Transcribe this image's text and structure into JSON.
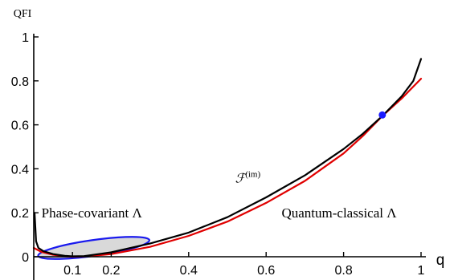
{
  "chart_data": {
    "type": "line",
    "xlabel": "q",
    "ylabel": "QFI",
    "xlim": [
      0,
      1
    ],
    "ylim": [
      0,
      1
    ],
    "x_ticks": [
      {
        "value": 0.1,
        "label": "0.1"
      },
      {
        "value": 0.2,
        "label": "0.2"
      },
      {
        "value": 0.4,
        "label": "0.4"
      },
      {
        "value": 0.6,
        "label": "0.6"
      },
      {
        "value": 0.8,
        "label": "0.8"
      },
      {
        "value": 1.0,
        "label": "1"
      }
    ],
    "y_ticks": [
      {
        "value": 0,
        "label": "0"
      },
      {
        "value": 0.2,
        "label": "0.2"
      },
      {
        "value": 0.4,
        "label": "0.4"
      },
      {
        "value": 0.6,
        "label": "0.6"
      },
      {
        "value": 0.8,
        "label": "0.8"
      },
      {
        "value": 1.0,
        "label": "1"
      }
    ],
    "series": [
      {
        "color": "#000000",
        "points": [
          [
            0.002,
            0.2
          ],
          [
            0.006,
            0.07
          ],
          [
            0.012,
            0.04
          ],
          [
            0.025,
            0.025
          ],
          [
            0.05,
            0.012
          ],
          [
            0.08,
            0.004
          ],
          [
            0.1,
            0.002
          ],
          [
            0.13,
            0.003
          ],
          [
            0.2,
            0.02
          ],
          [
            0.3,
            0.06
          ],
          [
            0.4,
            0.11
          ],
          [
            0.5,
            0.18
          ],
          [
            0.6,
            0.27
          ],
          [
            0.7,
            0.37
          ],
          [
            0.8,
            0.49
          ],
          [
            0.85,
            0.56
          ],
          [
            0.9,
            0.64
          ],
          [
            0.95,
            0.73
          ],
          [
            0.98,
            0.8
          ],
          [
            1.0,
            0.9
          ]
        ]
      },
      {
        "color": "#e00000",
        "points": [
          [
            0.0,
            0.04
          ],
          [
            0.02,
            0.022
          ],
          [
            0.05,
            0.009
          ],
          [
            0.08,
            0.002
          ],
          [
            0.1,
            0.0
          ],
          [
            0.13,
            0.001
          ],
          [
            0.2,
            0.012
          ],
          [
            0.3,
            0.045
          ],
          [
            0.4,
            0.095
          ],
          [
            0.5,
            0.16
          ],
          [
            0.6,
            0.245
          ],
          [
            0.7,
            0.345
          ],
          [
            0.8,
            0.47
          ],
          [
            0.85,
            0.55
          ],
          [
            0.9,
            0.64
          ],
          [
            0.95,
            0.72
          ],
          [
            1.0,
            0.81
          ]
        ]
      }
    ],
    "highlight_point": {
      "x": 0.9,
      "y": 0.645,
      "color": "#1a1aff"
    },
    "region": {
      "center": [
        0.155,
        0.04
      ],
      "rx": 0.145,
      "ry": 0.036,
      "fill": "#d9d9d9",
      "stroke": "#1a1aee"
    },
    "annotations": {
      "phase_covariant": {
        "text": "Phase-covariant Λ",
        "x": 0.02,
        "y": 0.2
      },
      "quantum_classical": {
        "text": "Quantum-classical Λ",
        "x": 0.64,
        "y": 0.2
      },
      "fisher": {
        "main": "ℱ",
        "sup": "(im)",
        "x": 0.52,
        "y": 0.36
      }
    },
    "grid": false,
    "legend": "none"
  }
}
